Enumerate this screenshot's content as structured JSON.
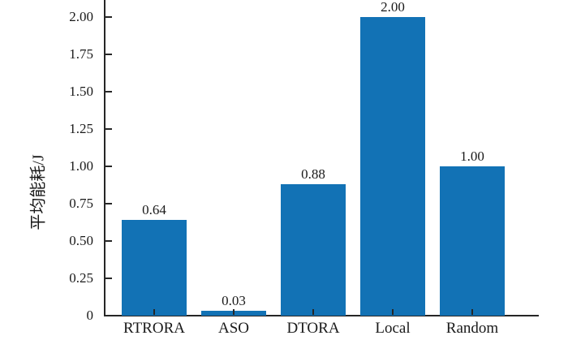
{
  "figure": {
    "background": "#ffffff",
    "axis_color": "#262626",
    "text_color": "#1a1a1a"
  },
  "chart_data": {
    "type": "bar",
    "categories": [
      "RTRORA",
      "ASO",
      "DTORA",
      "Local",
      "Random"
    ],
    "values": [
      0.64,
      0.03,
      0.88,
      2.0,
      1.0
    ],
    "value_labels": [
      "0.64",
      "0.03",
      "0.88",
      "2.00",
      "1.00"
    ],
    "title": "",
    "xlabel": "",
    "ylabel": "平均能耗/J",
    "ylim": [
      0,
      2.11
    ],
    "yticks": [
      0,
      0.25,
      0.5,
      0.75,
      1.0,
      1.25,
      1.5,
      1.75,
      2.0
    ],
    "ytick_labels": [
      "0",
      "0.25",
      "0.50",
      "0.75",
      "1.00",
      "1.25",
      "1.50",
      "1.75",
      "2.00"
    ],
    "grid": false,
    "legend": null,
    "tick_direction": "in",
    "bar_color": "#1272b5"
  }
}
